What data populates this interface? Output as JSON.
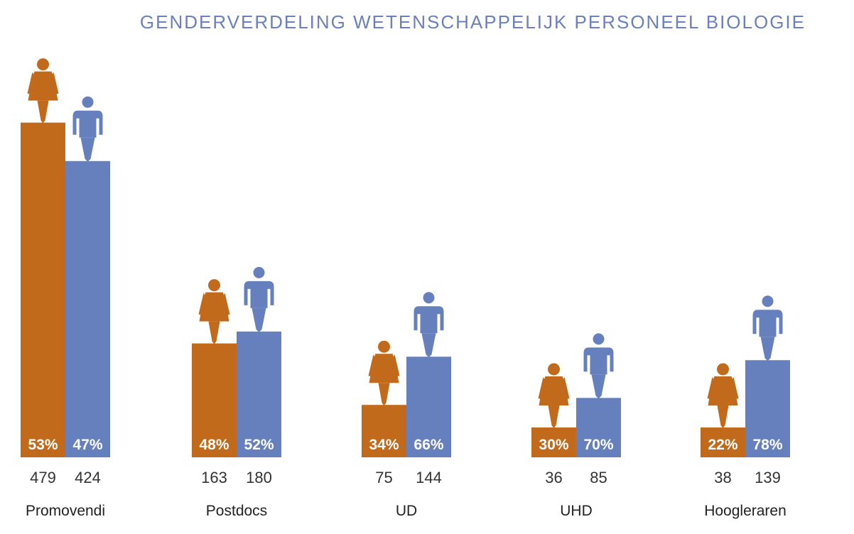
{
  "chart_data": {
    "type": "bar",
    "title": "GENDERVERDELING WETENSCHAPPELIJK PERSONEEL BIOLOGIE",
    "categories": [
      "Promovendi",
      "Postdocs",
      "UD",
      "UHD",
      "Hoogleraren"
    ],
    "series": [
      {
        "values": [
          479,
          163,
          75,
          36,
          38
        ],
        "percent_labels": [
          "53%",
          "48%",
          "34%",
          "30%",
          "22%"
        ],
        "icon": "woman-icon"
      },
      {
        "values": [
          424,
          180,
          144,
          85,
          139
        ],
        "percent_labels": [
          "47%",
          "52%",
          "66%",
          "70%",
          "78%"
        ],
        "icon": "man-icon"
      }
    ],
    "colors": {
      "series0": "#c26a1c",
      "series1": "#6680be",
      "title": "#6a80bf"
    },
    "grid": false
  }
}
